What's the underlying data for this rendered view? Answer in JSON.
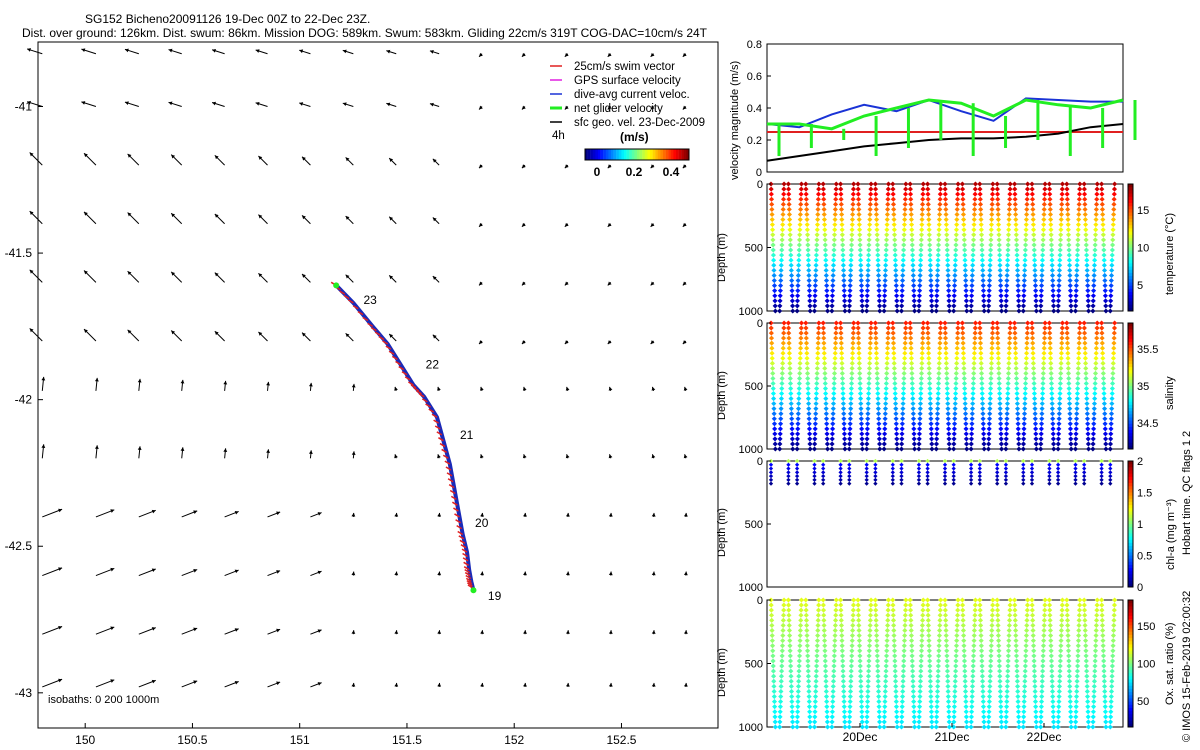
{
  "colors": {
    "swim": "#e02020",
    "gps": "#e020e0",
    "dac": "#1a33d6",
    "net": "#22ee22",
    "sfc": "#000000",
    "track": "#1a2ab8"
  },
  "title": {
    "line1": "SG152 Bicheno20091126 19-Dec 00Z to 22-Dec 23Z.",
    "line2": "Dist. over ground: 126km. Dist. swum: 86km. Mission DOG: 589km. Swum: 583km. Gliding 22cm/s 319T COG-DAC=10cm/s 24T"
  },
  "map": {
    "x_ticks": [
      "150",
      "150.5",
      "151",
      "151.5",
      "152",
      "152.5"
    ],
    "y_ticks": [
      "-41",
      "-41.5",
      "-42",
      "-42.5",
      "-43"
    ],
    "xlim": [
      149.78,
      152.95
    ],
    "ylim": [
      -43.12,
      -40.78
    ],
    "track_lon": [
      151.17,
      151.25,
      151.34,
      151.41,
      151.47,
      151.53,
      151.58,
      151.64,
      151.67,
      151.7,
      151.72,
      151.74,
      151.76,
      151.78,
      151.79,
      151.8,
      151.81
    ],
    "track_lat": [
      -41.61,
      -41.67,
      -41.75,
      -41.81,
      -41.88,
      -41.95,
      -41.99,
      -42.06,
      -42.14,
      -42.22,
      -42.3,
      -42.38,
      -42.46,
      -42.52,
      -42.58,
      -42.62,
      -42.65
    ],
    "day_labels": [
      {
        "t": "23",
        "lon": 151.26,
        "lat": -41.66
      },
      {
        "t": "22",
        "lon": 151.55,
        "lat": -41.88
      },
      {
        "t": "21",
        "lon": 151.71,
        "lat": -42.12
      },
      {
        "t": "20",
        "lon": 151.78,
        "lat": -42.42
      },
      {
        "t": "19",
        "lon": 151.84,
        "lat": -42.67
      }
    ],
    "isobath_label": "isobaths: 0   200  1000m",
    "interval_label": "4h"
  },
  "legend": {
    "items": [
      {
        "label": "25cm/s swim vector",
        "color": "#e02020"
      },
      {
        "label": "GPS surface velocity",
        "color": "#e020e0"
      },
      {
        "label": "dive-avg current veloc.",
        "color": "#1a33d6"
      },
      {
        "label": "net glider velocity",
        "color": "#22ee22"
      },
      {
        "label": "sfc geo. vel. 23-Dec-2009",
        "color": "#000000"
      }
    ],
    "colorbar_title": "(m/s)",
    "colorbar_ticks": [
      "0",
      "0.2",
      "0.4"
    ]
  },
  "chart_data": [
    {
      "type": "line",
      "title": "",
      "ylabel": "velocity magnitude (m/s)",
      "ylim": [
        0,
        0.8
      ],
      "y_ticks": [
        "0",
        "0.2",
        "0.4",
        "0.6",
        "0.8"
      ],
      "series": [
        {
          "name": "swim",
          "values": [
            0.25,
            0.25
          ]
        },
        {
          "name": "sfc",
          "values": [
            0.07,
            0.1,
            0.13,
            0.16,
            0.18,
            0.2,
            0.21,
            0.21,
            0.22,
            0.24,
            0.28,
            0.3
          ]
        },
        {
          "name": "dac",
          "values": [
            0.3,
            0.28,
            0.36,
            0.42,
            0.38,
            0.45,
            0.38,
            0.32,
            0.46,
            0.45,
            0.44,
            0.44
          ]
        },
        {
          "name": "net",
          "values": [
            0.3,
            0.3,
            0.27,
            0.35,
            0.4,
            0.45,
            0.43,
            0.35,
            0.45,
            0.42,
            0.4,
            0.45
          ]
        }
      ]
    },
    {
      "type": "scatter",
      "ylabel": "Depth (m)",
      "clabel": "temperature (°C)",
      "y_ticks": [
        "0",
        "500",
        "1000"
      ],
      "c_ticks": [
        "15",
        "10",
        "5"
      ],
      "ylim": [
        0,
        1000
      ]
    },
    {
      "type": "scatter",
      "ylabel": "Depth (m)",
      "clabel": "salinity",
      "y_ticks": [
        "0",
        "500",
        "1000"
      ],
      "c_ticks": [
        "35.5",
        "35",
        "34.5"
      ],
      "ylim": [
        0,
        1000
      ]
    },
    {
      "type": "scatter",
      "ylabel": "Depth (m)",
      "clabel": "chl-a (mg m⁻³)",
      "y_ticks": [
        "0",
        "500",
        "1000"
      ],
      "c_ticks": [
        "2",
        "1.5",
        "1",
        "0.5",
        "0"
      ],
      "ylim": [
        0,
        1000
      ]
    },
    {
      "type": "scatter",
      "ylabel": "Depth (m)",
      "clabel": "Ox. sat. ratio (%)",
      "y_ticks": [
        "0",
        "500",
        "1000"
      ],
      "c_ticks": [
        "150",
        "100",
        "50"
      ],
      "ylim": [
        0,
        1000
      ],
      "x_ticks": [
        "20Dec",
        "21Dec",
        "22Dec"
      ]
    }
  ],
  "side_text": "Hobart time. QC flags 1  2",
  "copyright": "© IMOS 15-Feb-2019 02:00:32"
}
